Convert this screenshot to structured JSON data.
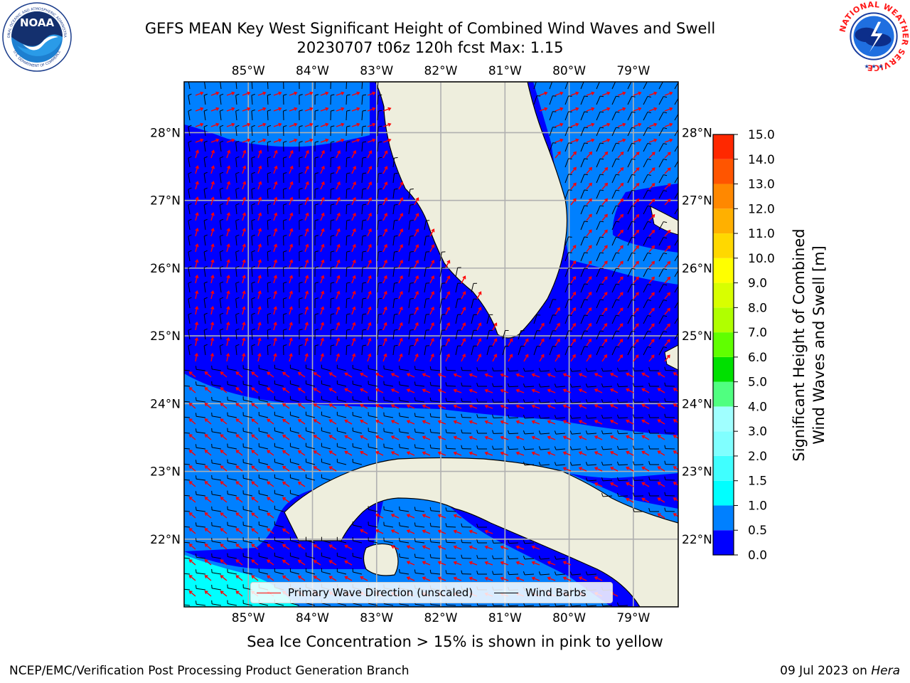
{
  "title": {
    "line1": "GEFS MEAN Key West Significant Height of Combined Wind Waves and Swell",
    "line2": "20230707 t06z 120h fcst   Max: 1.15"
  },
  "logos": {
    "noaa_text": "NOAA",
    "noaa_ring_top": "NATIONAL OCEANIC AND ATMOSPHERIC ADMINISTRATION",
    "noaa_ring_bottom": "U.S. DEPARTMENT OF COMMERCE",
    "nws_ring": "NATIONAL WEATHER SERVICE"
  },
  "map": {
    "lon_ticks": [
      "85°W",
      "84°W",
      "83°W",
      "82°W",
      "81°W",
      "80°W",
      "79°W"
    ],
    "lon_values": [
      -85,
      -84,
      -83,
      -82,
      -81,
      -80,
      -79
    ],
    "lat_ticks": [
      "28°N",
      "27°N",
      "26°N",
      "25°N",
      "24°N",
      "23°N",
      "22°N"
    ],
    "lat_values": [
      28,
      27,
      26,
      25,
      24,
      23,
      22
    ],
    "lon_range": [
      -86.0,
      -78.3
    ],
    "lat_range": [
      21.0,
      28.75
    ],
    "colors": {
      "land": "#eeeedd",
      "grid": "#b0b0b0",
      "wave_arrows": "#ff0000",
      "wind_barbs": "#000000"
    }
  },
  "legend": {
    "wave_label": "Primary Wave Direction (unscaled)",
    "wind_label": "Wind Barbs"
  },
  "colorbar": {
    "title": "Significant Height of Combined\nWind Waves and Swell [m]",
    "ticks": [
      "0.0",
      "0.5",
      "1.0",
      "1.5",
      "2.0",
      "3.0",
      "4.0",
      "5.0",
      "6.0",
      "7.0",
      "8.0",
      "9.0",
      "10.0",
      "11.0",
      "12.0",
      "13.0",
      "14.0",
      "15.0"
    ],
    "colors": [
      "#0000ff",
      "#0080ff",
      "#00ffff",
      "#40ffff",
      "#80ffff",
      "#a0ffff",
      "#50ff80",
      "#00e000",
      "#60ff00",
      "#b0ff00",
      "#d8ff00",
      "#ffff00",
      "#ffd800",
      "#ffb000",
      "#ff8800",
      "#ff5500",
      "#ff2800",
      "#ff0000"
    ]
  },
  "notes": {
    "ice": "Sea Ice Concentration > 15% is shown in pink to yellow",
    "footer_left": "NCEP/EMC/Verification Post Processing Product Generation Branch",
    "footer_right_date": "09 Jul 2023 on ",
    "footer_right_host": "Hera"
  }
}
